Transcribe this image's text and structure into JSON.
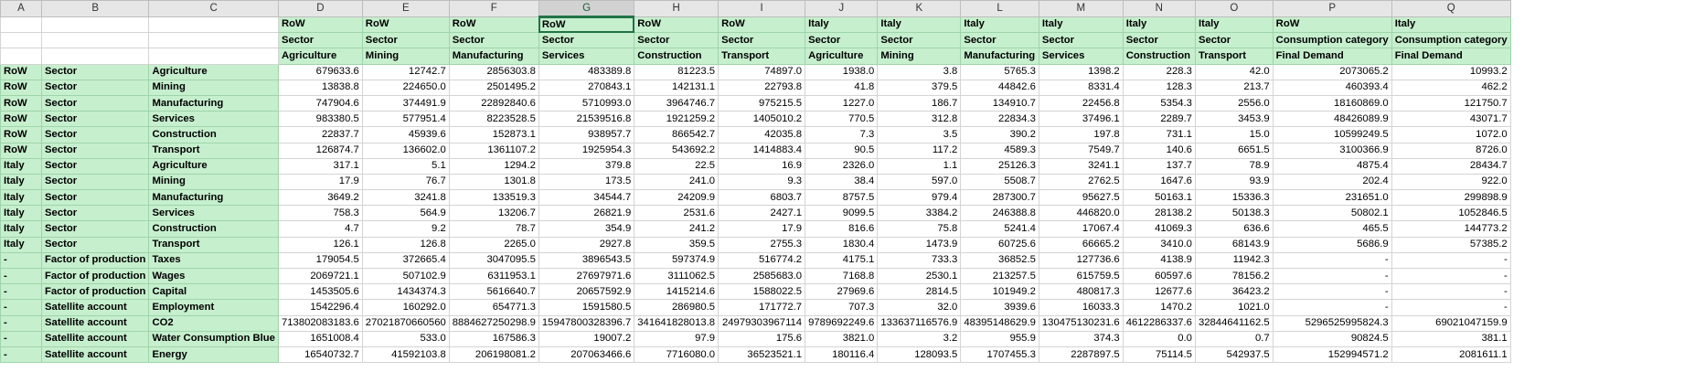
{
  "columns": [
    "A",
    "B",
    "C",
    "D",
    "E",
    "F",
    "G",
    "H",
    "I",
    "J",
    "K",
    "L",
    "M",
    "N",
    "O",
    "P",
    "Q"
  ],
  "selected_column": "G",
  "header_rows": [
    [
      "RoW",
      "RoW",
      "RoW",
      "RoW",
      "RoW",
      "RoW",
      "Italy",
      "Italy",
      "Italy",
      "Italy",
      "Italy",
      "Italy",
      "RoW",
      "Italy"
    ],
    [
      "Sector",
      "Sector",
      "Sector",
      "Sector",
      "Sector",
      "Sector",
      "Sector",
      "Sector",
      "Sector",
      "Sector",
      "Sector",
      "Sector",
      "Consumption category",
      "Consumption category"
    ],
    [
      "Agriculture",
      "Mining",
      "Manufacturing",
      "Services",
      "Construction",
      "Transport",
      "Agriculture",
      "Mining",
      "Manufacturing",
      "Services",
      "Construction",
      "Transport",
      "Final Demand",
      "Final Demand"
    ]
  ],
  "rows": [
    {
      "a": "RoW",
      "b": "Sector",
      "c": "Agriculture",
      "v": [
        "679633.6",
        "12742.7",
        "2856303.8",
        "483389.8",
        "81223.5",
        "74897.0",
        "1938.0",
        "3.8",
        "5765.3",
        "1398.2",
        "228.3",
        "42.0",
        "2073065.2",
        "10993.2"
      ]
    },
    {
      "a": "RoW",
      "b": "Sector",
      "c": "Mining",
      "v": [
        "13838.8",
        "224650.0",
        "2501495.2",
        "270843.1",
        "142131.1",
        "22793.8",
        "41.8",
        "379.5",
        "44842.6",
        "8331.4",
        "128.3",
        "213.7",
        "460393.4",
        "462.2"
      ]
    },
    {
      "a": "RoW",
      "b": "Sector",
      "c": "Manufacturing",
      "v": [
        "747904.6",
        "374491.9",
        "22892840.6",
        "5710993.0",
        "3964746.7",
        "975215.5",
        "1227.0",
        "186.7",
        "134910.7",
        "22456.8",
        "5354.3",
        "2556.0",
        "18160869.0",
        "121750.7"
      ]
    },
    {
      "a": "RoW",
      "b": "Sector",
      "c": "Services",
      "v": [
        "983380.5",
        "577951.4",
        "8223528.5",
        "21539516.8",
        "1921259.2",
        "1405010.2",
        "770.5",
        "312.8",
        "22834.3",
        "37496.1",
        "2289.7",
        "3453.9",
        "48426089.9",
        "43071.7"
      ]
    },
    {
      "a": "RoW",
      "b": "Sector",
      "c": "Construction",
      "v": [
        "22837.7",
        "45939.6",
        "152873.1",
        "938957.7",
        "866542.7",
        "42035.8",
        "7.3",
        "3.5",
        "390.2",
        "197.8",
        "731.1",
        "15.0",
        "10599249.5",
        "1072.0"
      ]
    },
    {
      "a": "RoW",
      "b": "Sector",
      "c": "Transport",
      "v": [
        "126874.7",
        "136602.0",
        "1361107.2",
        "1925954.3",
        "543692.2",
        "1414883.4",
        "90.5",
        "117.2",
        "4589.3",
        "7549.7",
        "140.6",
        "6651.5",
        "3100366.9",
        "8726.0"
      ]
    },
    {
      "a": "Italy",
      "b": "Sector",
      "c": "Agriculture",
      "v": [
        "317.1",
        "5.1",
        "1294.2",
        "379.8",
        "22.5",
        "16.9",
        "2326.0",
        "1.1",
        "25126.3",
        "3241.1",
        "137.7",
        "78.9",
        "4875.4",
        "28434.7"
      ]
    },
    {
      "a": "Italy",
      "b": "Sector",
      "c": "Mining",
      "v": [
        "17.9",
        "76.7",
        "1301.8",
        "173.5",
        "241.0",
        "9.3",
        "38.4",
        "597.0",
        "5508.7",
        "2762.5",
        "1647.6",
        "93.9",
        "202.4",
        "922.0"
      ]
    },
    {
      "a": "Italy",
      "b": "Sector",
      "c": "Manufacturing",
      "v": [
        "3649.2",
        "3241.8",
        "133519.3",
        "34544.7",
        "24209.9",
        "6803.7",
        "8757.5",
        "979.4",
        "287300.7",
        "95627.5",
        "50163.1",
        "15336.3",
        "231651.0",
        "299898.9"
      ]
    },
    {
      "a": "Italy",
      "b": "Sector",
      "c": "Services",
      "v": [
        "758.3",
        "564.9",
        "13206.7",
        "26821.9",
        "2531.6",
        "2427.1",
        "9099.5",
        "3384.2",
        "246388.8",
        "446820.0",
        "28138.2",
        "50138.3",
        "50802.1",
        "1052846.5"
      ]
    },
    {
      "a": "Italy",
      "b": "Sector",
      "c": "Construction",
      "v": [
        "4.7",
        "9.2",
        "78.7",
        "354.9",
        "241.2",
        "17.9",
        "816.6",
        "75.8",
        "5241.4",
        "17067.4",
        "41069.3",
        "636.6",
        "465.5",
        "144773.2"
      ]
    },
    {
      "a": "Italy",
      "b": "Sector",
      "c": "Transport",
      "v": [
        "126.1",
        "126.8",
        "2265.0",
        "2927.8",
        "359.5",
        "2755.3",
        "1830.4",
        "1473.9",
        "60725.6",
        "66665.2",
        "3410.0",
        "68143.9",
        "5686.9",
        "57385.2"
      ]
    },
    {
      "a": "-",
      "b": "Factor of production",
      "c": "Taxes",
      "v": [
        "179054.5",
        "372665.4",
        "3047095.5",
        "3896543.5",
        "597374.9",
        "516774.2",
        "4175.1",
        "733.3",
        "36852.5",
        "127736.6",
        "4138.9",
        "11942.3",
        "-",
        "-"
      ]
    },
    {
      "a": "-",
      "b": "Factor of production",
      "c": "Wages",
      "v": [
        "2069721.1",
        "507102.9",
        "6311953.1",
        "27697971.6",
        "3111062.5",
        "2585683.0",
        "7168.8",
        "2530.1",
        "213257.5",
        "615759.5",
        "60597.6",
        "78156.2",
        "-",
        "-"
      ]
    },
    {
      "a": "-",
      "b": "Factor of production",
      "c": "Capital",
      "v": [
        "1453505.6",
        "1434374.3",
        "5616640.7",
        "20657592.9",
        "1415214.6",
        "1588022.5",
        "27969.6",
        "2814.5",
        "101949.2",
        "480817.3",
        "12677.6",
        "36423.2",
        "-",
        "-"
      ]
    },
    {
      "a": "-",
      "b": "Satellite account",
      "c": "Employment",
      "v": [
        "1542296.4",
        "160292.0",
        "654771.3",
        "1591580.5",
        "286980.5",
        "171772.7",
        "707.3",
        "32.0",
        "3939.6",
        "16033.3",
        "1470.2",
        "1021.0",
        "-",
        "-"
      ]
    },
    {
      "a": "-",
      "b": "Satellite account",
      "c": "CO2",
      "v": [
        "713802083183.6",
        "27021870660560",
        "8884627250298.9",
        "15947800328396.7",
        "341641828013.8",
        "24979303967114",
        "9789692249.6",
        "133637116576.9",
        "48395148629.9",
        "130475130231.6",
        "4612286337.6",
        "32844641162.5",
        "5296525995824.3",
        "69021047159.9"
      ]
    },
    {
      "a": "-",
      "b": "Satellite account",
      "c": "Water Consumption Blue",
      "v": [
        "1651008.4",
        "533.0",
        "167586.3",
        "19007.2",
        "97.9",
        "175.6",
        "3821.0",
        "3.2",
        "955.9",
        "374.3",
        "0.0",
        "0.7",
        "90824.5",
        "381.1"
      ]
    },
    {
      "a": "-",
      "b": "Satellite account",
      "c": "Energy",
      "v": [
        "16540732.7",
        "41592103.8",
        "206198081.2",
        "207063466.6",
        "7716080.0",
        "36523521.1",
        "180116.4",
        "128093.5",
        "1707455.3",
        "2287897.5",
        "75114.5",
        "542937.5",
        "152994571.2",
        "2081611.1"
      ]
    }
  ]
}
